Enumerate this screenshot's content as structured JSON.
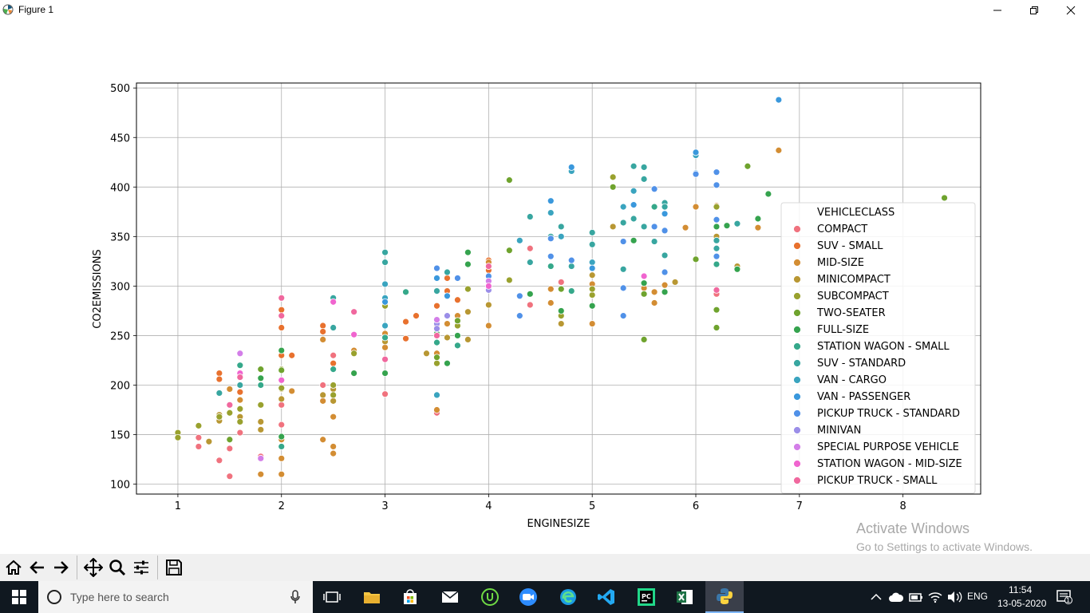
{
  "window": {
    "title": "Figure 1"
  },
  "chart_data": {
    "type": "scatter",
    "xlabel": "ENGINESIZE",
    "ylabel": "CO2EMISSIONS",
    "xlim": [
      0.6,
      8.75
    ],
    "ylim": [
      90,
      505
    ],
    "xticks": [
      1,
      2,
      3,
      4,
      5,
      6,
      7,
      8
    ],
    "yticks": [
      100,
      150,
      200,
      250,
      300,
      350,
      400,
      450,
      500
    ],
    "grid": true,
    "legend": {
      "title": "VEHICLECLASS",
      "placement": "center-right"
    },
    "series": [
      {
        "name": "COMPACT",
        "color": "#f0727e",
        "points": [
          [
            1.2,
            147
          ],
          [
            1.2,
            138
          ],
          [
            1.4,
            124
          ],
          [
            1.5,
            108
          ],
          [
            1.5,
            136
          ],
          [
            1.6,
            152
          ],
          [
            1.6,
            164
          ],
          [
            1.8,
            128
          ],
          [
            2.0,
            160
          ],
          [
            2.0,
            180
          ],
          [
            2.4,
            200
          ],
          [
            2.5,
            230
          ],
          [
            3.0,
            191
          ],
          [
            3.5,
            172
          ],
          [
            4.4,
            338
          ],
          [
            4.4,
            281
          ],
          [
            4.7,
            304
          ],
          [
            6.2,
            292
          ]
        ]
      },
      {
        "name": "SUV - SMALL",
        "color": "#e8712e",
        "points": [
          [
            1.4,
            212
          ],
          [
            1.4,
            206
          ],
          [
            1.6,
            193
          ],
          [
            2.0,
            288
          ],
          [
            2.0,
            276
          ],
          [
            2.0,
            258
          ],
          [
            2.0,
            230
          ],
          [
            2.1,
            230
          ],
          [
            2.4,
            260
          ],
          [
            2.4,
            254
          ],
          [
            2.5,
            222
          ],
          [
            3.0,
            251
          ],
          [
            3.2,
            264
          ],
          [
            3.2,
            247
          ],
          [
            3.3,
            270
          ],
          [
            3.5,
            280
          ],
          [
            3.5,
            260
          ],
          [
            3.6,
            308
          ],
          [
            3.6,
            295
          ],
          [
            3.7,
            286
          ],
          [
            4.0,
            326
          ],
          [
            4.0,
            316
          ]
        ]
      },
      {
        "name": "MID-SIZE",
        "color": "#d38d33",
        "points": [
          [
            1.5,
            196
          ],
          [
            1.6,
            185
          ],
          [
            1.8,
            110
          ],
          [
            2.0,
            126
          ],
          [
            2.0,
            110
          ],
          [
            2.0,
            145
          ],
          [
            2.1,
            194
          ],
          [
            2.4,
            145
          ],
          [
            2.4,
            184
          ],
          [
            2.4,
            246
          ],
          [
            2.5,
            138
          ],
          [
            2.5,
            131
          ],
          [
            2.5,
            168
          ],
          [
            2.7,
            235
          ],
          [
            3.0,
            252
          ],
          [
            3.0,
            238
          ],
          [
            3.5,
            175
          ],
          [
            3.5,
            232
          ],
          [
            3.6,
            262
          ],
          [
            3.7,
            270
          ],
          [
            4.0,
            281
          ],
          [
            4.0,
            260
          ],
          [
            4.0,
            324
          ],
          [
            4.6,
            297
          ],
          [
            4.6,
            283
          ],
          [
            5.0,
            262
          ],
          [
            5.0,
            302
          ],
          [
            5.5,
            298
          ],
          [
            5.6,
            283
          ],
          [
            5.6,
            294
          ],
          [
            5.7,
            301
          ],
          [
            5.9,
            359
          ],
          [
            6.0,
            380
          ],
          [
            6.2,
            381
          ],
          [
            6.6,
            359
          ],
          [
            6.8,
            437
          ]
        ]
      },
      {
        "name": "MINICOMPACT",
        "color": "#b89733",
        "points": [
          [
            1.3,
            143
          ],
          [
            1.4,
            164
          ],
          [
            1.4,
            170
          ],
          [
            1.6,
            168
          ],
          [
            1.8,
            155
          ],
          [
            1.8,
            163
          ],
          [
            2.0,
            196
          ],
          [
            2.0,
            186
          ],
          [
            2.4,
            190
          ],
          [
            2.5,
            196
          ],
          [
            2.5,
            184
          ],
          [
            3.0,
            244
          ],
          [
            3.4,
            232
          ],
          [
            3.6,
            248
          ],
          [
            3.8,
            246
          ],
          [
            3.8,
            274
          ],
          [
            4.0,
            281
          ],
          [
            4.7,
            262
          ],
          [
            5.0,
            311
          ],
          [
            5.2,
            360
          ],
          [
            5.8,
            304
          ],
          [
            6.2,
            350
          ],
          [
            6.4,
            320
          ]
        ]
      },
      {
        "name": "SUBCOMPACT",
        "color": "#99a12e",
        "points": [
          [
            1.0,
            152
          ],
          [
            1.0,
            147
          ],
          [
            1.2,
            159
          ],
          [
            1.4,
            168
          ],
          [
            1.5,
            172
          ],
          [
            1.6,
            163
          ],
          [
            1.6,
            176
          ],
          [
            1.8,
            180
          ],
          [
            1.8,
            200
          ],
          [
            2.0,
            197
          ],
          [
            2.0,
            216
          ],
          [
            2.5,
            200
          ],
          [
            2.5,
            190
          ],
          [
            2.7,
            232
          ],
          [
            3.0,
            280
          ],
          [
            3.5,
            222
          ],
          [
            3.5,
            252
          ],
          [
            3.7,
            260
          ],
          [
            3.8,
            297
          ],
          [
            4.0,
            310
          ],
          [
            4.2,
            306
          ],
          [
            4.7,
            270
          ],
          [
            5.0,
            291
          ],
          [
            5.0,
            297
          ],
          [
            5.2,
            410
          ],
          [
            6.2,
            380
          ]
        ]
      },
      {
        "name": "TWO-SEATER",
        "color": "#6fa32e",
        "points": [
          [
            1.5,
            145
          ],
          [
            1.8,
            216
          ],
          [
            2.0,
            215
          ],
          [
            3.5,
            228
          ],
          [
            3.7,
            265
          ],
          [
            4.2,
            407
          ],
          [
            4.2,
            336
          ],
          [
            4.7,
            297
          ],
          [
            5.2,
            400
          ],
          [
            5.5,
            246
          ],
          [
            5.5,
            292
          ],
          [
            6.0,
            327
          ],
          [
            6.2,
            276
          ],
          [
            6.2,
            258
          ],
          [
            6.5,
            421
          ],
          [
            8.4,
            389
          ]
        ]
      },
      {
        "name": "FULL-SIZE",
        "color": "#35a34e",
        "points": [
          [
            1.8,
            207
          ],
          [
            2.0,
            235
          ],
          [
            2.0,
            148
          ],
          [
            2.7,
            212
          ],
          [
            3.0,
            212
          ],
          [
            3.5,
            252
          ],
          [
            3.6,
            222
          ],
          [
            3.7,
            250
          ],
          [
            3.8,
            322
          ],
          [
            3.8,
            334
          ],
          [
            4.4,
            292
          ],
          [
            4.7,
            275
          ],
          [
            5.0,
            280
          ],
          [
            5.4,
            346
          ],
          [
            5.5,
            303
          ],
          [
            5.7,
            294
          ],
          [
            6.2,
            360
          ],
          [
            6.3,
            361
          ],
          [
            6.4,
            317
          ],
          [
            6.6,
            368
          ],
          [
            6.7,
            393
          ]
        ]
      },
      {
        "name": "STATION WAGON - SMALL",
        "color": "#35a88a",
        "points": [
          [
            1.6,
            220
          ],
          [
            1.8,
            200
          ],
          [
            2.0,
            138
          ],
          [
            2.5,
            216
          ],
          [
            3.0,
            260
          ],
          [
            3.0,
            248
          ],
          [
            3.2,
            294
          ],
          [
            3.5,
            243
          ],
          [
            3.7,
            240
          ],
          [
            4.6,
            320
          ],
          [
            4.8,
            295
          ],
          [
            5.5,
            360
          ],
          [
            5.6,
            380
          ],
          [
            6.2,
            322
          ]
        ]
      },
      {
        "name": "SUV - STANDARD",
        "color": "#38a6a0",
        "points": [
          [
            1.4,
            192
          ],
          [
            1.6,
            200
          ],
          [
            2.5,
            288
          ],
          [
            2.5,
            258
          ],
          [
            3.0,
            334
          ],
          [
            3.0,
            324
          ],
          [
            3.5,
            295
          ],
          [
            3.5,
            266
          ],
          [
            3.6,
            314
          ],
          [
            4.4,
            370
          ],
          [
            4.4,
            324
          ],
          [
            4.6,
            350
          ],
          [
            4.7,
            360
          ],
          [
            4.8,
            320
          ],
          [
            5.0,
            354
          ],
          [
            5.0,
            342
          ],
          [
            5.3,
            364
          ],
          [
            5.3,
            317
          ],
          [
            5.4,
            421
          ],
          [
            5.4,
            368
          ],
          [
            5.5,
            408
          ],
          [
            5.5,
            420
          ],
          [
            5.5,
            360
          ],
          [
            5.6,
            345
          ],
          [
            5.7,
            384
          ],
          [
            5.7,
            380
          ],
          [
            5.7,
            331
          ],
          [
            6.2,
            346
          ],
          [
            6.2,
            338
          ],
          [
            6.4,
            363
          ]
        ]
      },
      {
        "name": "VAN - CARGO",
        "color": "#3aa4bf",
        "points": [
          [
            3.0,
            302
          ],
          [
            3.0,
            288
          ],
          [
            3.0,
            260
          ],
          [
            3.5,
            190
          ],
          [
            4.3,
            346
          ],
          [
            4.6,
            374
          ],
          [
            4.7,
            350
          ],
          [
            4.8,
            416
          ],
          [
            5.0,
            324
          ],
          [
            5.3,
            380
          ],
          [
            5.4,
            396
          ],
          [
            6.0,
            432
          ]
        ]
      },
      {
        "name": "VAN - PASSENGER",
        "color": "#3a98dc",
        "points": [
          [
            3.0,
            284
          ],
          [
            3.5,
            308
          ],
          [
            3.6,
            290
          ],
          [
            4.6,
            386
          ],
          [
            4.8,
            420
          ],
          [
            5.0,
            318
          ],
          [
            5.4,
            382
          ],
          [
            5.7,
            373
          ],
          [
            6.0,
            435
          ],
          [
            6.0,
            414
          ],
          [
            6.8,
            488
          ]
        ]
      },
      {
        "name": "PICKUP TRUCK - STANDARD",
        "color": "#5091e8",
        "points": [
          [
            3.5,
            318
          ],
          [
            3.7,
            308
          ],
          [
            4.0,
            310
          ],
          [
            4.3,
            290
          ],
          [
            4.3,
            270
          ],
          [
            4.6,
            330
          ],
          [
            4.6,
            348
          ],
          [
            4.8,
            326
          ],
          [
            5.3,
            270
          ],
          [
            5.3,
            298
          ],
          [
            5.3,
            345
          ],
          [
            5.6,
            398
          ],
          [
            5.6,
            360
          ],
          [
            5.7,
            356
          ],
          [
            5.7,
            314
          ],
          [
            6.0,
            413
          ],
          [
            6.2,
            415
          ],
          [
            6.2,
            402
          ],
          [
            6.2,
            367
          ],
          [
            6.2,
            330
          ]
        ]
      },
      {
        "name": "MINIVAN",
        "color": "#9b8ee8",
        "points": [
          [
            3.5,
            262
          ],
          [
            3.5,
            257
          ],
          [
            3.6,
            270
          ],
          [
            4.0,
            296
          ]
        ]
      },
      {
        "name": "SPECIAL PURPOSE VEHICLE",
        "color": "#d37ee8",
        "points": [
          [
            1.6,
            232
          ],
          [
            1.8,
            126
          ],
          [
            3.5,
            266
          ],
          [
            4.0,
            305
          ]
        ]
      },
      {
        "name": "STATION WAGON - MID-SIZE",
        "color": "#f065cf",
        "points": [
          [
            1.6,
            212
          ],
          [
            2.0,
            205
          ],
          [
            2.5,
            284
          ],
          [
            2.7,
            251
          ],
          [
            4.0,
            300
          ],
          [
            5.5,
            310
          ]
        ]
      },
      {
        "name": "PICKUP TRUCK - SMALL",
        "color": "#f0689e",
        "points": [
          [
            1.5,
            180
          ],
          [
            1.6,
            208
          ],
          [
            2.0,
            288
          ],
          [
            2.0,
            270
          ],
          [
            2.7,
            274
          ],
          [
            3.0,
            226
          ],
          [
            3.5,
            250
          ],
          [
            4.0,
            320
          ],
          [
            6.2,
            296
          ]
        ]
      }
    ]
  },
  "toolbar": {
    "icons": [
      "home-icon",
      "back-arrow-icon",
      "forward-arrow-icon",
      "pan-icon",
      "zoom-icon",
      "configure-subplots-icon",
      "save-icon"
    ]
  },
  "taskbar": {
    "search_placeholder": "Type here to search",
    "language": "ENG",
    "time": "11:54",
    "date": "13-05-2020",
    "notification_count": "1"
  },
  "watermark": {
    "line1": "Activate Windows",
    "line2": "Go to Settings to activate Windows."
  }
}
